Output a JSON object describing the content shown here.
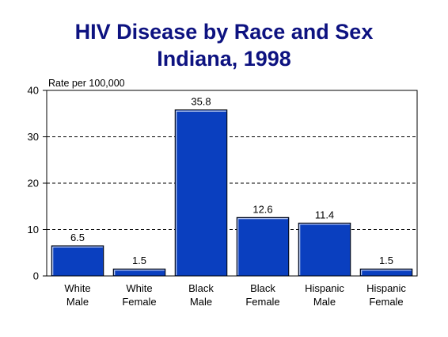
{
  "chart_data": {
    "type": "bar",
    "title": [
      "HIV Disease by Race and Sex",
      "Indiana, 1998"
    ],
    "ylabel": "Rate per 100,000",
    "xlabel": "",
    "categories": [
      [
        "White",
        "Male"
      ],
      [
        "White",
        "Female"
      ],
      [
        "Black",
        "Male"
      ],
      [
        "Black",
        "Female"
      ],
      [
        "Hispanic",
        "Male"
      ],
      [
        "Hispanic",
        "Female"
      ]
    ],
    "values": [
      6.5,
      1.5,
      35.8,
      12.6,
      11.4,
      1.5
    ],
    "data_labels": [
      "6.5",
      "1.5",
      "35.8",
      "12.6",
      "11.4",
      "1.5"
    ],
    "ylim": [
      0,
      40
    ],
    "yticks": [
      0,
      10,
      20,
      30,
      40
    ],
    "grid": "horizontal dashed",
    "legend": "none",
    "colors": {
      "bar": "#0a3fbf",
      "bar_edge": "#000000",
      "title": "#0d1280"
    }
  }
}
